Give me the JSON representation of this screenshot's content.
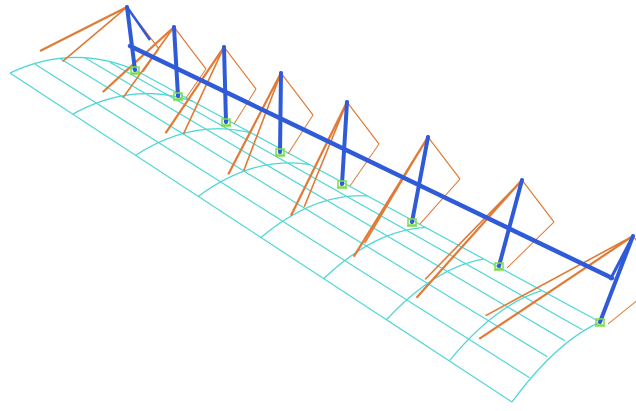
{
  "view": {
    "background": "#ffffff",
    "projection": "isometric"
  },
  "colors": {
    "roof_grid": "#4fd6d6",
    "main_structure": "#2f5bd8",
    "cables": "#e07a35",
    "supports": "#7fdc4a"
  },
  "model": {
    "type": "cable-stayed-roof-frame",
    "bay_count": 8,
    "mast_count": 8,
    "legend": []
  }
}
